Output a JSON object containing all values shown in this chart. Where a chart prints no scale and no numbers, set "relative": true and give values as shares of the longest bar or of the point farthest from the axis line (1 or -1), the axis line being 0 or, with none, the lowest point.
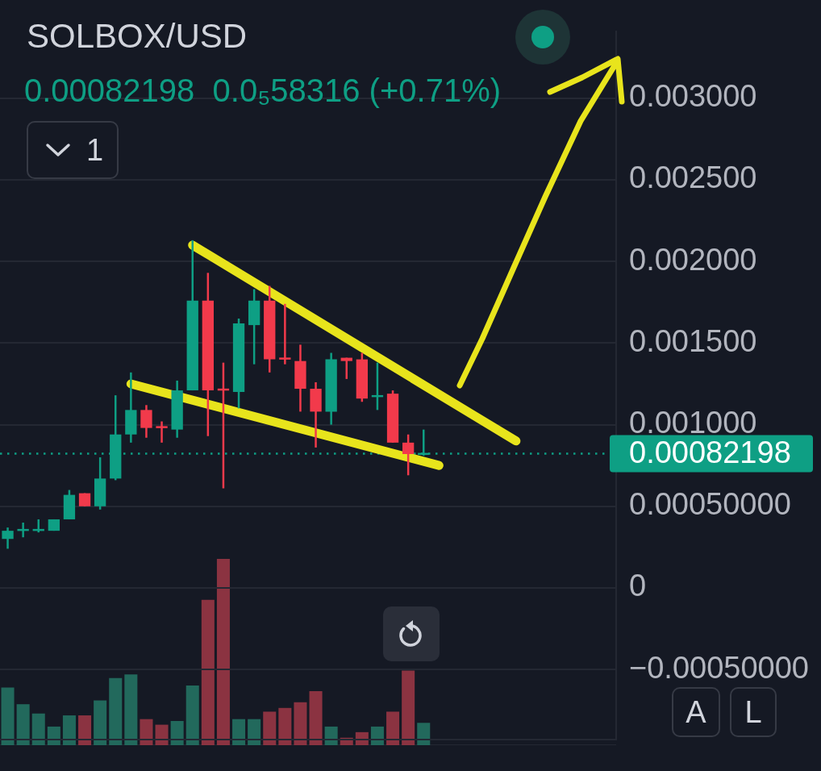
{
  "chart_data": [
    {
      "type": "candlestick",
      "title": "SOLBOX/USD",
      "subtitle": "0.00082198  0.0₅58316 (+0.71%)",
      "annotations": [
        "1",
        "A",
        "L"
      ],
      "categories": [
        null,
        null,
        null,
        null,
        null,
        null,
        null,
        null,
        null,
        null,
        null,
        null,
        null,
        null,
        null,
        null,
        null,
        null,
        null,
        null,
        null,
        null,
        null,
        null,
        null,
        null,
        null,
        null,
        null,
        null,
        null,
        null,
        null,
        null,
        null,
        null,
        null,
        null,
        null,
        null
      ],
      "ohlc": [
        [
          0.0003,
          0.00037,
          0.00024,
          0.00035
        ],
        [
          0.00035,
          0.0004,
          0.00031,
          0.00036
        ],
        [
          0.00035,
          0.00042,
          0.00034,
          0.00036
        ],
        [
          0.00035,
          0.00042,
          0.00035,
          0.00042
        ],
        [
          0.00042,
          0.0006,
          0.00042,
          0.00057
        ],
        [
          0.00058,
          0.00058,
          0.0005,
          0.0005
        ],
        [
          0.0005,
          0.0008,
          0.00048,
          0.00067
        ],
        [
          0.00067,
          0.00118,
          0.00066,
          0.00094
        ],
        [
          0.00094,
          0.00132,
          0.00089,
          0.00109
        ],
        [
          0.00109,
          0.00112,
          0.00092,
          0.00098
        ],
        [
          0.00099,
          0.00102,
          0.00089,
          0.00098
        ],
        [
          0.00097,
          0.00127,
          0.00092,
          0.00121
        ],
        [
          0.00121,
          0.00213,
          0.00121,
          0.00176
        ],
        [
          0.00176,
          0.00193,
          0.00093,
          0.00121
        ],
        [
          0.00122,
          0.00138,
          0.00061,
          0.00121
        ],
        [
          0.0012,
          0.00165,
          0.0011,
          0.00162
        ],
        [
          0.00161,
          0.00183,
          0.00137,
          0.00176
        ],
        [
          0.00176,
          0.00185,
          0.00132,
          0.0014
        ],
        [
          0.00141,
          0.00174,
          0.00137,
          0.0014
        ],
        [
          0.00139,
          0.00149,
          0.00108,
          0.00122
        ],
        [
          0.00122,
          0.00126,
          0.00086,
          0.00108
        ],
        [
          0.00108,
          0.00144,
          0.001,
          0.0014
        ],
        [
          0.00141,
          0.00141,
          0.00128,
          0.00139
        ],
        [
          0.0014,
          0.00144,
          0.00114,
          0.00116
        ],
        [
          0.00117,
          0.00138,
          0.00109,
          0.00118
        ],
        [
          0.00119,
          0.00121,
          0.00089,
          0.00089
        ],
        [
          0.00089,
          0.00094,
          0.00069,
          0.00082
        ],
        [
          0.00082,
          0.00097,
          0.00081,
          0.00082198
        ],
        null,
        null,
        null,
        null,
        null,
        null,
        null,
        null,
        null,
        null,
        null,
        null
      ],
      "colors": [
        "#0e9f84",
        "#0e9f84",
        "#0e9f84",
        "#0e9f84",
        "#0e9f84",
        "#f23a4b",
        "#0e9f84",
        "#0e9f84",
        "#0e9f84",
        "#f23a4b",
        "#f23a4b",
        "#0e9f84",
        "#0e9f84",
        "#f23a4b",
        "#f23a4b",
        "#0e9f84",
        "#0e9f84",
        "#f23a4b",
        "#f23a4b",
        "#f23a4b",
        "#f23a4b",
        "#0e9f84",
        "#f23a4b",
        "#f23a4b",
        "#0e9f84",
        "#f23a4b",
        "#f23a4b",
        "#0e9f84",
        null,
        null,
        null,
        null,
        null,
        null,
        null,
        null,
        null,
        null,
        null,
        null
      ],
      "series": [
        {
          "type": "line",
          "color": "#e8e41c",
          "values": [
            null,
            null,
            null,
            null,
            null,
            null,
            null,
            null,
            null,
            null,
            null,
            null,
            0.0021,
            null,
            null,
            null,
            null,
            null,
            null,
            null,
            null,
            null,
            null,
            null,
            null,
            null,
            null,
            null,
            null,
            null,
            null,
            null,
            null,
            0.0009,
            null,
            null,
            null,
            null,
            null,
            null
          ]
        },
        {
          "type": "line",
          "color": "#e8e41c",
          "values": [
            null,
            null,
            null,
            null,
            null,
            null,
            null,
            null,
            0.00125,
            null,
            null,
            null,
            null,
            null,
            null,
            null,
            null,
            null,
            null,
            null,
            null,
            null,
            null,
            null,
            null,
            null,
            null,
            null,
            0.00075,
            null,
            null,
            null,
            null,
            null,
            null,
            null,
            null,
            null,
            null,
            null
          ]
        }
      ],
      "ylim": [
        -0.00093,
        0.00341
      ],
      "yticks": [
        {
          "value": 0.003,
          "label": "0.003000"
        },
        {
          "value": 0.0025,
          "label": "0.002500"
        },
        {
          "value": 0.002,
          "label": "0.002000"
        },
        {
          "value": 0.0015,
          "label": "0.001500"
        },
        {
          "value": 0.001,
          "label": "0.001000"
        },
        {
          "value": 0.0005,
          "label": "0.00050000"
        },
        0,
        {
          "value": -0.0005,
          "label": "−0.00050000"
        }
      ],
      "grid": "y",
      "marker": "none",
      "ref_lines": [
        {
          "axis": "y",
          "value": 0.00082198,
          "label": "0.00082198",
          "color": "#0e9f84",
          "line_style": "dotted"
        }
      ]
    },
    {
      "type": "bar",
      "relative": true,
      "categories": [
        null,
        null,
        null,
        null,
        null,
        null,
        null,
        null,
        null,
        null,
        null,
        null,
        null,
        null,
        null,
        null,
        null,
        null,
        null,
        null,
        null,
        null,
        null,
        null,
        null,
        null,
        null,
        null,
        null,
        null,
        null,
        null,
        null,
        null,
        null,
        null,
        null,
        null,
        null,
        null
      ],
      "values": [
        0.31,
        0.22,
        0.17,
        0.1,
        0.16,
        0.16,
        0.24,
        0.36,
        0.38,
        0.14,
        0.11,
        0.13,
        0.32,
        0.78,
        1,
        0.14,
        0.14,
        0.18,
        0.2,
        0.23,
        0.29,
        0.1,
        0.04,
        0.07,
        0.1,
        0.18,
        0.4,
        0.12,
        null,
        null,
        null,
        null,
        null,
        null,
        null,
        null,
        null,
        null,
        null,
        null
      ],
      "colors": [
        "#22695c",
        "#22695c",
        "#22695c",
        "#22695c",
        "#22695c",
        "#8b3341",
        "#22695c",
        "#22695c",
        "#22695c",
        "#8b3341",
        "#8b3341",
        "#22695c",
        "#22695c",
        "#8b3341",
        "#8b3341",
        "#22695c",
        "#22695c",
        "#8b3341",
        "#8b3341",
        "#8b3341",
        "#8b3341",
        "#22695c",
        "#8b3341",
        "#8b3341",
        "#22695c",
        "#8b3341",
        "#8b3341",
        "#22695c",
        null,
        null,
        null,
        null,
        null,
        null,
        null,
        null,
        null,
        null,
        null,
        null
      ]
    }
  ]
}
